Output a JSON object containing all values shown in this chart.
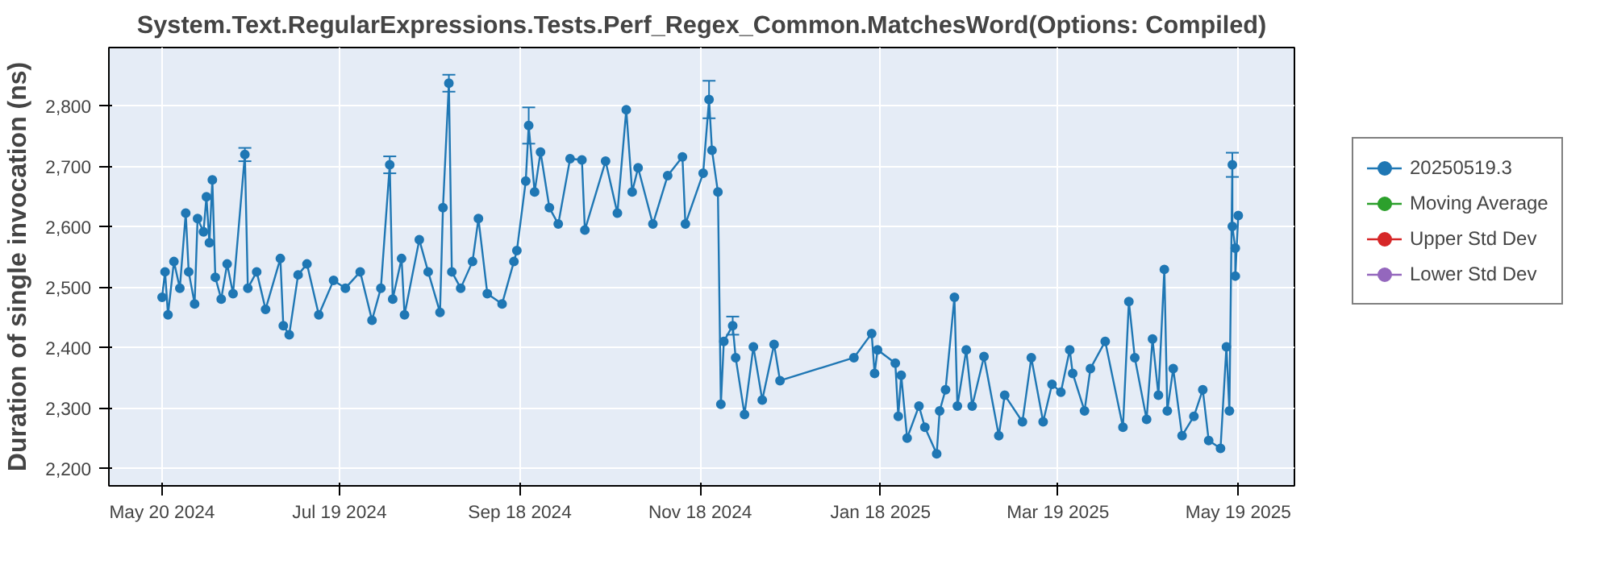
{
  "chart_data": {
    "type": "line",
    "title": "System.Text.RegularExpressions.Tests.Perf_Regex_Common.MatchesWord(Options: Compiled)",
    "ylabel": "Duration of single invocation (ns)",
    "xlim": [
      "2024-05-02",
      "2025-06-07"
    ],
    "xticks": [
      {
        "value": "2024-05-20",
        "label": "May 20 2024"
      },
      {
        "value": "2024-07-19",
        "label": "Jul 19 2024"
      },
      {
        "value": "2024-09-18",
        "label": "Sep 18 2024"
      },
      {
        "value": "2024-11-18",
        "label": "Nov 18 2024"
      },
      {
        "value": "2025-01-18",
        "label": "Jan 18 2025"
      },
      {
        "value": "2025-03-19",
        "label": "Mar 19 2025"
      },
      {
        "value": "2025-05-19",
        "label": "May 19 2025"
      }
    ],
    "ylim": [
      2172,
      2897
    ],
    "yticks": [
      {
        "value": 2200,
        "label": "2,200"
      },
      {
        "value": 2300,
        "label": "2,300"
      },
      {
        "value": 2400,
        "label": "2,400"
      },
      {
        "value": 2500,
        "label": "2,500"
      },
      {
        "value": 2600,
        "label": "2,600"
      },
      {
        "value": 2700,
        "label": "2,700"
      },
      {
        "value": 2800,
        "label": "2,800"
      }
    ],
    "grid": true,
    "legend": "right",
    "marker": "circle",
    "line_style": "solid",
    "series": [
      {
        "name": "20250519.3",
        "color": "#1f77b4",
        "x": [
          "2024-05-20",
          "2024-05-21",
          "2024-05-22",
          "2024-05-24",
          "2024-05-26",
          "2024-05-28",
          "2024-05-29",
          "2024-05-31",
          "2024-06-01",
          "2024-06-03",
          "2024-06-04",
          "2024-06-05",
          "2024-06-06",
          "2024-06-07",
          "2024-06-09",
          "2024-06-11",
          "2024-06-13",
          "2024-06-17",
          "2024-06-18",
          "2024-06-21",
          "2024-06-24",
          "2024-06-29",
          "2024-06-30",
          "2024-07-02",
          "2024-07-05",
          "2024-07-08",
          "2024-07-12",
          "2024-07-17",
          "2024-07-21",
          "2024-07-26",
          "2024-07-30",
          "2024-08-02",
          "2024-08-05",
          "2024-08-06",
          "2024-08-09",
          "2024-08-10",
          "2024-08-15",
          "2024-08-18",
          "2024-08-22",
          "2024-08-23",
          "2024-08-25",
          "2024-08-26",
          "2024-08-29",
          "2024-09-02",
          "2024-09-04",
          "2024-09-07",
          "2024-09-12",
          "2024-09-16",
          "2024-09-17",
          "2024-09-20",
          "2024-09-21",
          "2024-09-23",
          "2024-09-25",
          "2024-09-28",
          "2024-10-01",
          "2024-10-05",
          "2024-10-09",
          "2024-10-10",
          "2024-10-17",
          "2024-10-21",
          "2024-10-24",
          "2024-10-26",
          "2024-10-28",
          "2024-11-02",
          "2024-11-07",
          "2024-11-12",
          "2024-11-13",
          "2024-11-19",
          "2024-11-21",
          "2024-11-22",
          "2024-11-24",
          "2024-11-25",
          "2024-11-26",
          "2024-11-29",
          "2024-11-30",
          "2024-12-03",
          "2024-12-06",
          "2024-12-09",
          "2024-12-13",
          "2024-12-15",
          "2025-01-09",
          "2025-01-15",
          "2025-01-16",
          "2025-01-17",
          "2025-01-23",
          "2025-01-24",
          "2025-01-25",
          "2025-01-27",
          "2025-01-31",
          "2025-02-02",
          "2025-02-06",
          "2025-02-07",
          "2025-02-09",
          "2025-02-12",
          "2025-02-13",
          "2025-02-16",
          "2025-02-18",
          "2025-02-22",
          "2025-02-27",
          "2025-03-01",
          "2025-03-07",
          "2025-03-10",
          "2025-03-14",
          "2025-03-17",
          "2025-03-20",
          "2025-03-23",
          "2025-03-24",
          "2025-03-28",
          "2025-03-30",
          "2025-04-04",
          "2025-04-10",
          "2025-04-12",
          "2025-04-14",
          "2025-04-18",
          "2025-04-20",
          "2025-04-22",
          "2025-04-24",
          "2025-04-25",
          "2025-04-27",
          "2025-04-30",
          "2025-05-04",
          "2025-05-07",
          "2025-05-09",
          "2025-05-13",
          "2025-05-15",
          "2025-05-16",
          "2025-05-17",
          "2025-05-17",
          "2025-05-18",
          "2025-05-18",
          "2025-05-19"
        ],
        "values": [
          2484,
          2526,
          2455,
          2543,
          2499,
          2623,
          2526,
          2473,
          2614,
          2592,
          2650,
          2574,
          2678,
          2517,
          2481,
          2539,
          2490,
          2720,
          2499,
          2526,
          2464,
          2548,
          2437,
          2422,
          2521,
          2539,
          2455,
          2512,
          2499,
          2526,
          2446,
          2499,
          2703,
          2481,
          2548,
          2455,
          2579,
          2526,
          2459,
          2632,
          2838,
          2526,
          2499,
          2543,
          2614,
          2490,
          2473,
          2543,
          2561,
          2676,
          2768,
          2658,
          2724,
          2632,
          2605,
          2713,
          2711,
          2595,
          2709,
          2623,
          2794,
          2658,
          2698,
          2605,
          2685,
          2716,
          2605,
          2689,
          2811,
          2727,
          2658,
          2307,
          2411,
          2437,
          2384,
          2290,
          2402,
          2314,
          2406,
          2346,
          2384,
          2424,
          2358,
          2397,
          2375,
          2287,
          2355,
          2251,
          2304,
          2269,
          2225,
          2296,
          2331,
          2484,
          2304,
          2397,
          2304,
          2386,
          2255,
          2322,
          2278,
          2384,
          2278,
          2340,
          2327,
          2397,
          2358,
          2296,
          2366,
          2411,
          2269,
          2477,
          2384,
          2282,
          2415,
          2322,
          2530,
          2296,
          2366,
          2255,
          2287,
          2331,
          2247,
          2234,
          2402,
          2296,
          2703,
          2601,
          2565,
          2519,
          2619
        ],
        "errors": [
          null,
          null,
          null,
          null,
          null,
          null,
          null,
          null,
          null,
          null,
          null,
          null,
          null,
          null,
          null,
          null,
          null,
          11,
          null,
          null,
          null,
          null,
          null,
          null,
          null,
          null,
          null,
          null,
          null,
          null,
          null,
          null,
          14,
          null,
          null,
          null,
          null,
          null,
          null,
          null,
          14,
          null,
          null,
          null,
          null,
          null,
          null,
          null,
          null,
          null,
          30,
          null,
          null,
          null,
          null,
          null,
          null,
          null,
          null,
          null,
          null,
          null,
          null,
          null,
          null,
          null,
          null,
          null,
          31,
          null,
          null,
          null,
          null,
          15,
          null,
          null,
          null,
          null,
          null,
          null,
          null,
          null,
          null,
          null,
          null,
          null,
          null,
          null,
          null,
          null,
          null,
          null,
          null,
          null,
          null,
          null,
          null,
          null,
          null,
          null,
          null,
          null,
          null,
          null,
          null,
          null,
          null,
          null,
          null,
          null,
          null,
          null,
          null,
          null,
          null,
          null,
          null,
          null,
          null,
          null,
          null,
          null,
          null,
          null,
          null,
          null,
          20,
          null,
          null,
          null,
          null
        ]
      },
      {
        "name": "Moving Average",
        "color": "#2ca02c"
      },
      {
        "name": "Upper Std Dev",
        "color": "#d62728"
      },
      {
        "name": "Lower Std Dev",
        "color": "#9467bd"
      }
    ]
  }
}
